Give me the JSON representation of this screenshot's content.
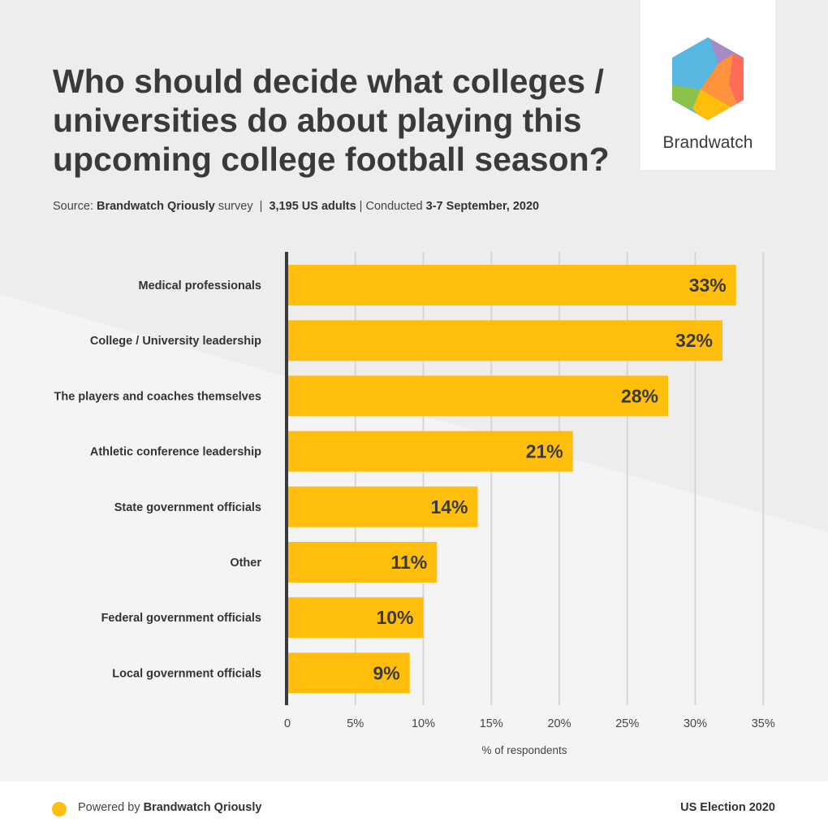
{
  "header": {
    "title": "Who should decide what colleges / universities do about playing this upcoming college football season?"
  },
  "source": {
    "prefix": "Source: ",
    "org": "Brandwatch Qriously",
    "survey": " survey  |  ",
    "sample": "3,195 US adults",
    "conducted": " | Conducted ",
    "dates": "3-7 September, 2020"
  },
  "logo": {
    "name": "Brandwatch"
  },
  "colors": {
    "bar": "#ffbe0b",
    "axis": "#3a3a3a",
    "grid": "#d6d6d6",
    "label_text": "#333333"
  },
  "chart_data": {
    "type": "bar",
    "orientation": "horizontal",
    "categories": [
      "Medical professionals",
      "College / University leadership",
      "The players and coaches themselves",
      "Athletic conference leadership",
      "State government officials",
      "Other",
      "Federal government officials",
      "Local government officials"
    ],
    "values": [
      33,
      32,
      28,
      21,
      14,
      11,
      10,
      9
    ],
    "value_labels": [
      "33%",
      "32%",
      "28%",
      "21%",
      "14%",
      "11%",
      "10%",
      "9%"
    ],
    "xticks": [
      0,
      5,
      10,
      15,
      20,
      25,
      30,
      35
    ],
    "xtick_labels": [
      "0",
      "5%",
      "10%",
      "15%",
      "20%",
      "25%",
      "30%",
      "35%"
    ],
    "xlim": [
      0,
      35
    ],
    "xlabel": "% of respondents",
    "grid": true
  },
  "footer": {
    "powered_prefix": "Powered by ",
    "powered_org": "Brandwatch Qriously",
    "right": "US Election 2020"
  }
}
